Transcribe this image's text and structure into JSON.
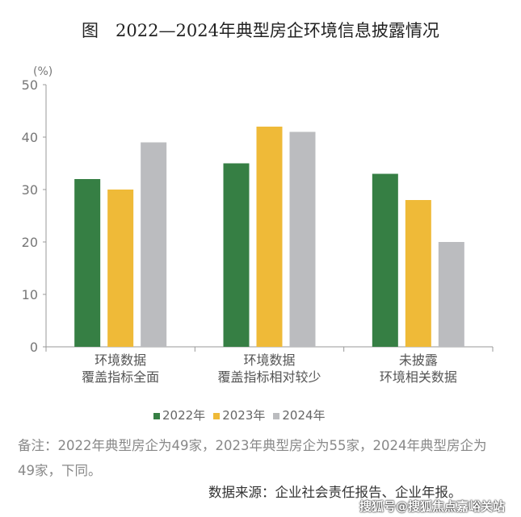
{
  "title": "图　2022—2024年典型房企环境信息披露情况",
  "chart_data": {
    "type": "bar",
    "title": "图　2022—2024年典型房企环境信息披露情况",
    "ylabel": "(%)",
    "ylim": [
      0,
      50
    ],
    "yticks": [
      0,
      10,
      20,
      30,
      40,
      50
    ],
    "grid": false,
    "legend_placement": "bottom",
    "categories": [
      [
        "环境数据",
        "覆盖指标全面"
      ],
      [
        "环境数据",
        "覆盖指标相对较少"
      ],
      [
        "未披露",
        "环境相关数据"
      ]
    ],
    "series": [
      {
        "name": "2022年",
        "color": "#367f44",
        "values": [
          32,
          35,
          33
        ]
      },
      {
        "name": "2023年",
        "color": "#efba38",
        "values": [
          30,
          42,
          28
        ]
      },
      {
        "name": "2024年",
        "color": "#bbbcbf",
        "values": [
          39,
          41,
          20
        ]
      }
    ]
  },
  "note": "备注：2022年典型房企为49家，2023年典型房企为55家，2024年典型房企为49家，下同。",
  "source": "数据来源：企业社会责任报告、企业年报。",
  "watermark": "搜狐号@搜狐焦点嘉峪关站"
}
